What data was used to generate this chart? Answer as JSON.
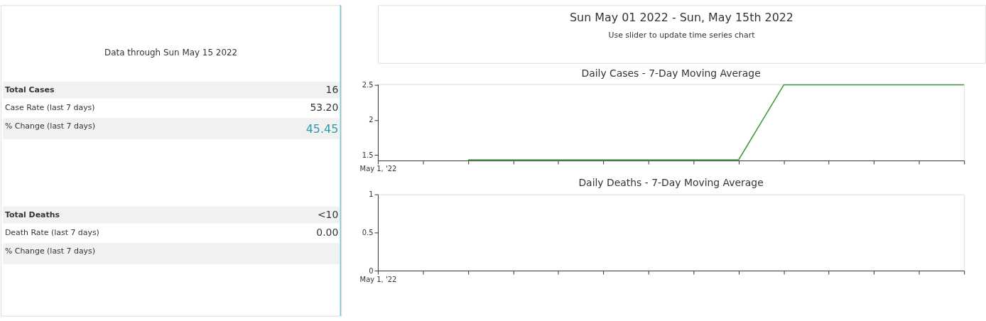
{
  "chart_data": [
    {
      "type": "other",
      "title": "Data through Sun May 15 2022",
      "annotations": [
        "Total Cases",
        "16",
        "Case Rate (last 7 days)",
        "53.20",
        "% Change (last 7 days)",
        "45.45",
        "Total Deaths",
        "<10",
        "Death Rate (last 7 days)",
        "0.00",
        "% Change (last 7 days)"
      ]
    },
    {
      "type": "other",
      "title": "Sun May 01 2022 - Sun, May 15th 2022",
      "subtitle": "Use slider to update time series chart"
    },
    {
      "type": "line",
      "title": "Daily Cases - 7-Day Moving Average",
      "categories": [
        "May 1, '22",
        null,
        null,
        null,
        null,
        null,
        null,
        null,
        null,
        null,
        null,
        null,
        null,
        null
      ],
      "series": [
        {
          "color": "#3a9a3a",
          "values": [
            null,
            null,
            1.43,
            1.43,
            1.43,
            1.43,
            1.43,
            1.43,
            1.43,
            2.5,
            2.5,
            2.5,
            2.5,
            2.5
          ]
        }
      ],
      "ylim": [
        1.42,
        2.51
      ],
      "yticks": [
        1.5,
        2,
        2.5
      ],
      "grid": false
    },
    {
      "type": "line",
      "title": "Daily Deaths - 7-Day Moving Average",
      "categories": [
        "May 1, '22",
        null,
        null,
        null,
        null,
        null,
        null,
        null,
        null,
        null,
        null,
        null,
        null,
        null
      ],
      "series": [
        {
          "values": [
            null,
            null,
            null,
            null,
            null,
            null,
            null,
            null,
            null,
            null,
            null,
            null,
            null,
            null
          ]
        }
      ],
      "ylim": [
        0,
        1
      ],
      "yticks": [
        0,
        0.5,
        1
      ],
      "grid": false
    }
  ]
}
